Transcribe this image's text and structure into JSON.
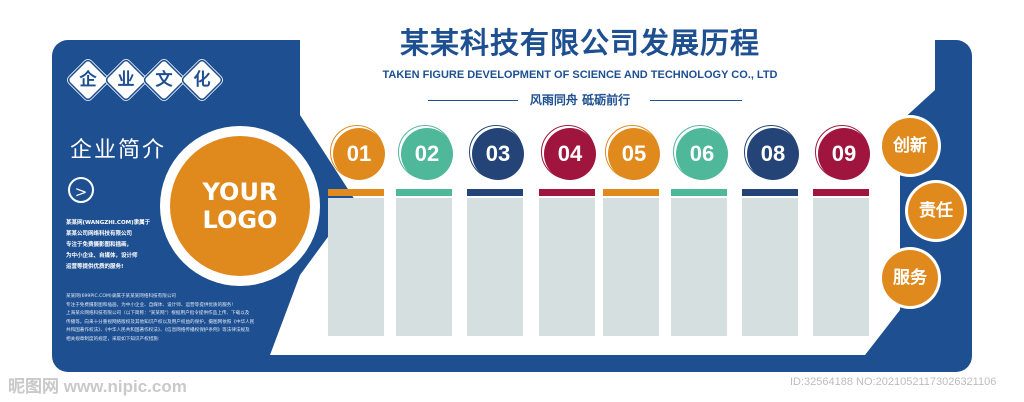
{
  "header": {
    "title": "某某科技有限公司发展历程",
    "subtitle": "TAKEN FIGURE DEVELOPMENT OF SCIENCE AND TECHNOLOGY CO., LTD",
    "slogan": "风雨同舟 砥砺前行"
  },
  "sidebar": {
    "culture_chars": [
      "企",
      "业",
      "文",
      "化"
    ],
    "intro_title": "企业简介",
    "arrow": ">",
    "intro_lines": [
      "某某网(WANGZHI.COM)隶属于",
      "某某公司网络科技有限公司",
      "专注于免费摄影图和插画，",
      "为中小企业、自媒体，设计师",
      "运营等提供优质的服务!"
    ],
    "desc_lines": [
      "某某网(699PIC.COM)隶属于某某某网络科技有限公司",
      "专注于免费摄影图和插画，为中小企业、自媒体、设计师、运营等提供优质的服务!",
      "上海某众网络科技有限公司（以下简称：\"某某网\"）根据用户指令提供作品上传、下载以及",
      "传播等。向来十分重视网络版权及其他知识产权以及用户权益的保护。摄图网依照《中华人民",
      "共和国著作权法》、《中华人民共和国著作权法》、《信息网络传播权保护条例》等法律法规及",
      "相关规章制度的规定，采取如下知识产权措施:"
    ]
  },
  "logo": {
    "text": "YOUR\nLOGO"
  },
  "timeline": [
    {
      "label": "01",
      "color": "#e08a1e"
    },
    {
      "label": "02",
      "color": "#4fb79a"
    },
    {
      "label": "03",
      "color": "#244478"
    },
    {
      "label": "04",
      "color": "#a0153e"
    },
    {
      "label": "05",
      "color": "#e08a1e"
    },
    {
      "label": "06",
      "color": "#4fb79a"
    },
    {
      "label": "08",
      "color": "#244478"
    },
    {
      "label": "09",
      "color": "#a0153e"
    }
  ],
  "values": [
    "创新",
    "责任",
    "服务"
  ],
  "watermarks": {
    "left": "昵图网 www.nipic.com",
    "right": "ID:32564188 NO:20210521173026321106"
  },
  "colors": {
    "brand_blue": "#1d4f91",
    "orange": "#e08a1e",
    "panel_gray": "#d5dfdf"
  }
}
